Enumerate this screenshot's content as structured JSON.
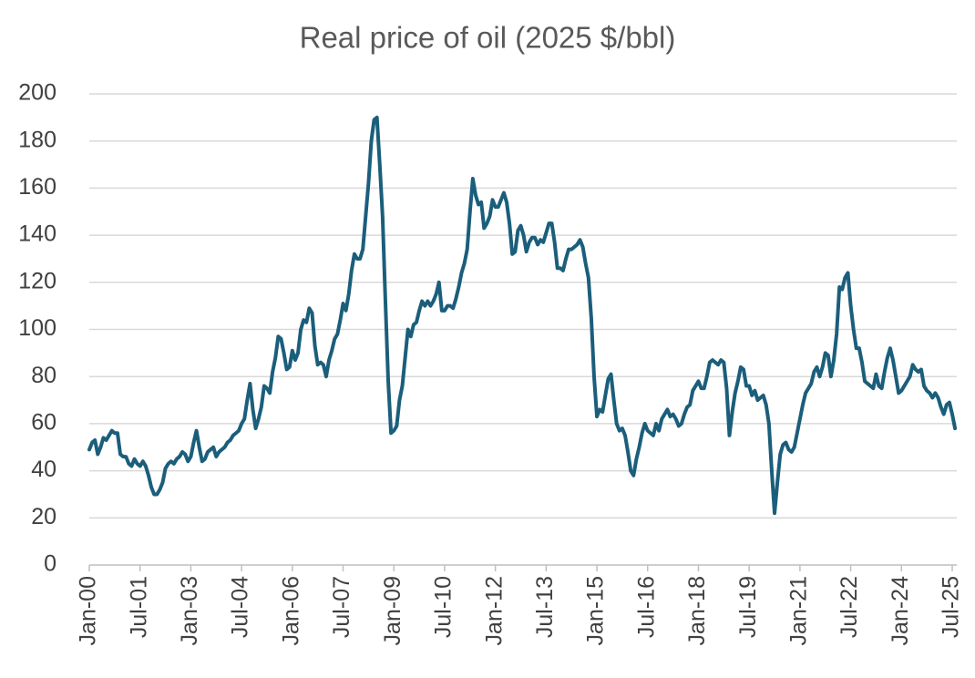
{
  "chart_data": {
    "type": "line",
    "title": "Real price of oil (2025 $/bbl)",
    "categories": [
      "Jan-00",
      null,
      null,
      null,
      null,
      null,
      null,
      null,
      null,
      null,
      null,
      null,
      null,
      null,
      null,
      null,
      null,
      null,
      "Jul-01",
      null,
      null,
      null,
      null,
      null,
      null,
      null,
      null,
      null,
      null,
      null,
      null,
      null,
      null,
      null,
      null,
      null,
      "Jan-03",
      null,
      null,
      null,
      null,
      null,
      null,
      null,
      null,
      null,
      null,
      null,
      null,
      null,
      null,
      null,
      null,
      null,
      "Jul-04",
      null,
      null,
      null,
      null,
      null,
      null,
      null,
      null,
      null,
      null,
      null,
      null,
      null,
      null,
      null,
      null,
      null,
      "Jan-06",
      null,
      null,
      null,
      null,
      null,
      null,
      null,
      null,
      null,
      null,
      null,
      null,
      null,
      null,
      null,
      null,
      null,
      "Jul-07",
      null,
      null,
      null,
      null,
      null,
      null,
      null,
      null,
      null,
      null,
      null,
      null,
      null,
      null,
      null,
      null,
      null,
      "Jan-09",
      null,
      null,
      null,
      null,
      null,
      null,
      null,
      null,
      null,
      null,
      null,
      null,
      null,
      null,
      null,
      null,
      null,
      "Jul-10",
      null,
      null,
      null,
      null,
      null,
      null,
      null,
      null,
      null,
      null,
      null,
      null,
      null,
      null,
      null,
      null,
      null,
      "Jan-12",
      null,
      null,
      null,
      null,
      null,
      null,
      null,
      null,
      null,
      null,
      null,
      null,
      null,
      null,
      null,
      null,
      null,
      "Jul-13",
      null,
      null,
      null,
      null,
      null,
      null,
      null,
      null,
      null,
      null,
      null,
      null,
      null,
      null,
      null,
      null,
      null,
      "Jan-15",
      null,
      null,
      null,
      null,
      null,
      null,
      null,
      null,
      null,
      null,
      null,
      null,
      null,
      null,
      null,
      null,
      null,
      "Jul-16",
      null,
      null,
      null,
      null,
      null,
      null,
      null,
      null,
      null,
      null,
      null,
      null,
      null,
      null,
      null,
      null,
      null,
      "Jan-18",
      null,
      null,
      null,
      null,
      null,
      null,
      null,
      null,
      null,
      null,
      null,
      null,
      null,
      null,
      null,
      null,
      null,
      "Jul-19",
      null,
      null,
      null,
      null,
      null,
      null,
      null,
      null,
      null,
      null,
      null,
      null,
      null,
      null,
      null,
      null,
      null,
      "Jan-21",
      null,
      null,
      null,
      null,
      null,
      null,
      null,
      null,
      null,
      null,
      null,
      null,
      null,
      null,
      null,
      null,
      null,
      "Jul-22",
      null,
      null,
      null,
      null,
      null,
      null,
      null,
      null,
      null,
      null,
      null,
      null,
      null,
      null,
      null,
      null,
      null,
      "Jan-24",
      null,
      null,
      null,
      null,
      null,
      null,
      null,
      null,
      null,
      null,
      null,
      null,
      null,
      null,
      null,
      null,
      null,
      "Jul-25",
      null
    ],
    "values": [
      49,
      52,
      53,
      47,
      50,
      54,
      53,
      55,
      57,
      56,
      56,
      47,
      46,
      46,
      43,
      42,
      45,
      43,
      42,
      44,
      42,
      38,
      33,
      30,
      30,
      32,
      35,
      41,
      43,
      44,
      43,
      45,
      46,
      48,
      47,
      44,
      46,
      52,
      57,
      50,
      44,
      45,
      48,
      49,
      50,
      46,
      48,
      49,
      50,
      52,
      53,
      55,
      56,
      57,
      60,
      62,
      70,
      77,
      66,
      58,
      62,
      67,
      76,
      75,
      73,
      82,
      88,
      97,
      96,
      90,
      83,
      84,
      91,
      87,
      90,
      100,
      104,
      103,
      109,
      107,
      93,
      85,
      86,
      85,
      80,
      87,
      91,
      96,
      98,
      104,
      111,
      108,
      115,
      125,
      132,
      130,
      130,
      134,
      148,
      162,
      180,
      189,
      190,
      170,
      148,
      112,
      78,
      56,
      57,
      59,
      70,
      76,
      88,
      100,
      97,
      102,
      103,
      108,
      112,
      110,
      112,
      110,
      112,
      115,
      120,
      108,
      108,
      110,
      110,
      109,
      113,
      118,
      124,
      128,
      134,
      150,
      164,
      157,
      153,
      154,
      143,
      145,
      148,
      155,
      152,
      152,
      155,
      158,
      154,
      145,
      132,
      133,
      142,
      144,
      140,
      133,
      137,
      139,
      139,
      136,
      138,
      137,
      141,
      145,
      145,
      137,
      126,
      126,
      125,
      130,
      134,
      134,
      135,
      136,
      138,
      135,
      128,
      122,
      105,
      80,
      63,
      66,
      65,
      72,
      79,
      81,
      70,
      60,
      57,
      58,
      55,
      48,
      40,
      38,
      45,
      50,
      56,
      60,
      57,
      56,
      55,
      60,
      57,
      62,
      64,
      66,
      63,
      64,
      62,
      59,
      60,
      64,
      67,
      68,
      74,
      76,
      78,
      75,
      75,
      80,
      86,
      87,
      86,
      85,
      87,
      86,
      75,
      55,
      65,
      73,
      78,
      84,
      83,
      76,
      76,
      72,
      74,
      70,
      71,
      72,
      68,
      60,
      40,
      22,
      35,
      47,
      51,
      52,
      49,
      48,
      50,
      56,
      62,
      68,
      73,
      75,
      77,
      82,
      84,
      80,
      84,
      90,
      89,
      80,
      87,
      98,
      118,
      117,
      122,
      124,
      110,
      100,
      92,
      92,
      86,
      78,
      77,
      76,
      75,
      81,
      76,
      75,
      82,
      88,
      92,
      87,
      80,
      73,
      74,
      76,
      78,
      80,
      85,
      83,
      82,
      83,
      76,
      74,
      73,
      71,
      73,
      71,
      67,
      64,
      68,
      69,
      64,
      58
    ],
    "color": "#1b5e7b",
    "ylim": [
      0,
      200
    ],
    "yticks": [
      0,
      20,
      40,
      60,
      80,
      100,
      120,
      140,
      160,
      180,
      200
    ],
    "grid": true
  }
}
